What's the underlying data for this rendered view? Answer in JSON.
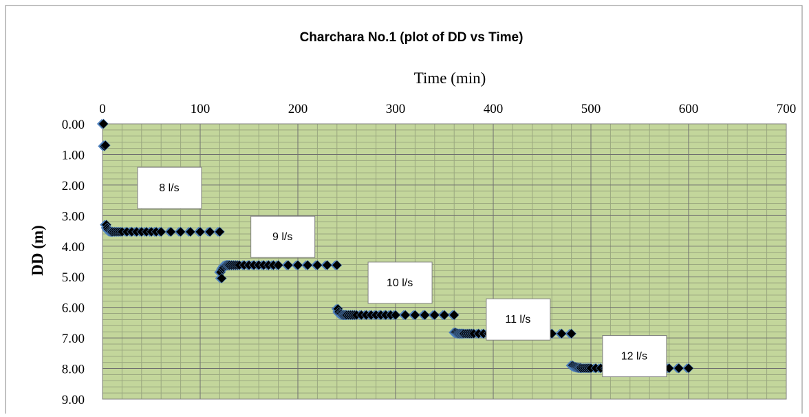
{
  "chart_data": {
    "type": "scatter",
    "title": "Charchara No.1 (plot of DD vs Time)",
    "xlabel": "Time (min)",
    "ylabel": "DD (m)",
    "x_axis_position": "top",
    "y_axis_reversed": true,
    "xlim": [
      0,
      700
    ],
    "ylim": [
      0,
      9
    ],
    "x_ticks": [
      "0",
      "100",
      "200",
      "300",
      "400",
      "500",
      "600",
      "700"
    ],
    "y_ticks": [
      "0.00",
      "1.00",
      "2.00",
      "3.00",
      "4.00",
      "5.00",
      "6.00",
      "7.00",
      "8.00",
      "9.00"
    ],
    "x_tick_values": [
      0,
      100,
      200,
      300,
      400,
      500,
      600,
      700
    ],
    "y_tick_values": [
      0,
      1,
      2,
      3,
      4,
      5,
      6,
      7,
      8,
      9
    ],
    "grid": true,
    "plot_background": "#c3d69b",
    "grid_color": "#7f7f7f",
    "marker_color": "#000000",
    "marker_shadow_color": "#4f81bd",
    "marker": "diamond",
    "steps": [
      {
        "label": "8 l/s",
        "times": [
          1,
          2,
          3,
          4,
          5,
          6,
          7,
          8,
          9,
          10,
          12,
          14,
          16,
          18,
          20,
          25,
          30,
          35,
          40,
          45,
          50,
          55,
          60,
          70,
          80,
          90,
          100,
          110,
          120
        ],
        "dd": [
          0.0,
          0.73,
          0.7,
          3.3,
          3.4,
          3.45,
          3.5,
          3.52,
          3.53,
          3.53,
          3.53,
          3.53,
          3.53,
          3.53,
          3.53,
          3.53,
          3.53,
          3.53,
          3.53,
          3.53,
          3.53,
          3.53,
          3.53,
          3.53,
          3.53,
          3.53,
          3.53,
          3.53,
          3.53
        ]
      },
      {
        "label": "9 l/s",
        "times": [
          121,
          122,
          123,
          124,
          125,
          126,
          127,
          128,
          129,
          130,
          132,
          134,
          136,
          138,
          140,
          145,
          150,
          155,
          160,
          165,
          170,
          175,
          180,
          190,
          200,
          210,
          220,
          230,
          240
        ],
        "dd": [
          4.85,
          5.05,
          4.75,
          4.7,
          4.65,
          4.63,
          4.62,
          4.62,
          4.62,
          4.62,
          4.62,
          4.62,
          4.62,
          4.62,
          4.62,
          4.62,
          4.62,
          4.62,
          4.62,
          4.62,
          4.62,
          4.62,
          4.62,
          4.62,
          4.62,
          4.62,
          4.62,
          4.62,
          4.62
        ]
      },
      {
        "label": "10 l/s",
        "times": [
          241,
          242,
          243,
          244,
          245,
          246,
          247,
          248,
          249,
          250,
          252,
          254,
          256,
          258,
          260,
          265,
          270,
          275,
          280,
          285,
          290,
          295,
          300,
          310,
          320,
          330,
          340,
          350,
          360
        ],
        "dd": [
          6.05,
          6.15,
          6.2,
          6.22,
          6.24,
          6.25,
          6.25,
          6.25,
          6.25,
          6.25,
          6.25,
          6.25,
          6.25,
          6.25,
          6.25,
          6.25,
          6.25,
          6.25,
          6.25,
          6.25,
          6.25,
          6.25,
          6.25,
          6.25,
          6.25,
          6.25,
          6.25,
          6.25,
          6.25
        ]
      },
      {
        "label": "11 l/s",
        "times": [
          361,
          362,
          363,
          364,
          365,
          366,
          367,
          368,
          369,
          370,
          372,
          374,
          376,
          378,
          380,
          385,
          390,
          395,
          400,
          405,
          410,
          415,
          420,
          430,
          440,
          450,
          460,
          470,
          480
        ],
        "dd": [
          6.82,
          6.84,
          6.85,
          6.86,
          6.86,
          6.86,
          6.86,
          6.86,
          6.86,
          6.86,
          6.86,
          6.86,
          6.86,
          6.86,
          6.86,
          6.86,
          6.86,
          6.86,
          6.86,
          6.86,
          6.86,
          6.86,
          6.86,
          6.86,
          6.86,
          6.86,
          6.86,
          6.86,
          6.86
        ]
      },
      {
        "label": "12 l/s",
        "times": [
          481,
          482,
          483,
          484,
          485,
          486,
          487,
          488,
          489,
          490,
          492,
          494,
          496,
          498,
          500,
          505,
          510,
          515,
          520,
          525,
          530,
          535,
          540,
          550,
          560,
          570,
          580,
          590,
          600
        ],
        "dd": [
          7.9,
          7.92,
          7.94,
          7.95,
          7.96,
          7.97,
          7.98,
          7.98,
          7.98,
          7.99,
          7.99,
          7.99,
          7.99,
          7.99,
          7.99,
          7.99,
          7.99,
          7.99,
          7.99,
          7.99,
          7.99,
          7.99,
          7.99,
          7.99,
          7.99,
          7.99,
          7.99,
          7.99,
          7.99
        ]
      }
    ],
    "annotations": [
      {
        "text": "8 l/s",
        "x": 38,
        "y": 2.05
      },
      {
        "text": "9 l/s",
        "x": 154,
        "y": 3.65
      },
      {
        "text": "10 l/s",
        "x": 274,
        "y": 5.15
      },
      {
        "text": "11 l/s",
        "x": 395,
        "y": 6.35
      },
      {
        "text": "12 l/s",
        "x": 514,
        "y": 7.55
      }
    ]
  }
}
